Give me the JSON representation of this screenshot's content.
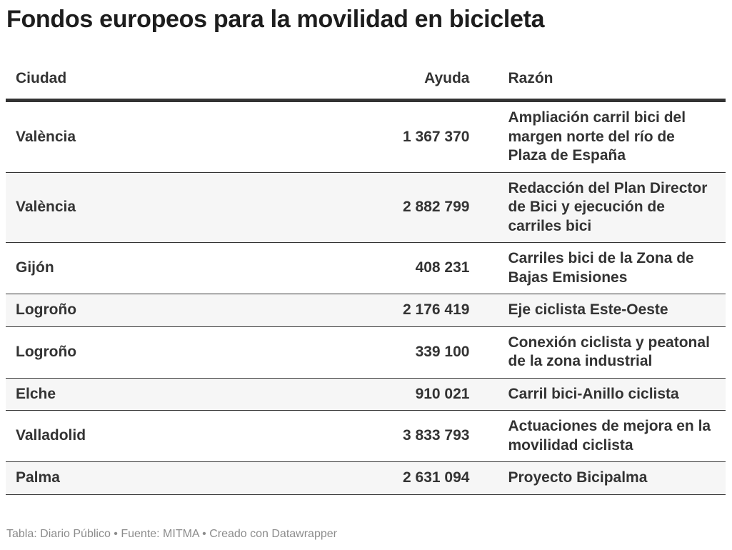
{
  "header": {
    "title": "Fondos europeos para la movilidad en bicicleta"
  },
  "table": {
    "columns": [
      "Ciudad",
      "Ayuda",
      "Razón"
    ],
    "rows": [
      [
        "València",
        "1 367 370",
        "Ampliación carril bici del margen norte del río de Plaza de España"
      ],
      [
        "València",
        "2 882 799",
        "Redacción del Plan Director de Bici y ejecución de carriles bici"
      ],
      [
        "Gijón",
        "408 231",
        "Carriles bici de la Zona de Bajas Emisiones"
      ],
      [
        "Logroño",
        "2 176 419",
        "Eje ciclista Este-Oeste"
      ],
      [
        "Logroño",
        "339 100",
        "Conexión ciclista y peatonal de la zona industrial"
      ],
      [
        "Elche",
        "910 021",
        "Carril bici-Anillo ciclista"
      ],
      [
        "Valladolid",
        "3 833 793",
        "Actuaciones de mejora en la movilidad ciclista"
      ],
      [
        "Palma",
        "2 631 094",
        "Proyecto Bicipalma"
      ]
    ]
  },
  "footer": {
    "note": "Tabla: Diario Público • Fuente: MITMA • Creado con Datawrapper"
  }
}
